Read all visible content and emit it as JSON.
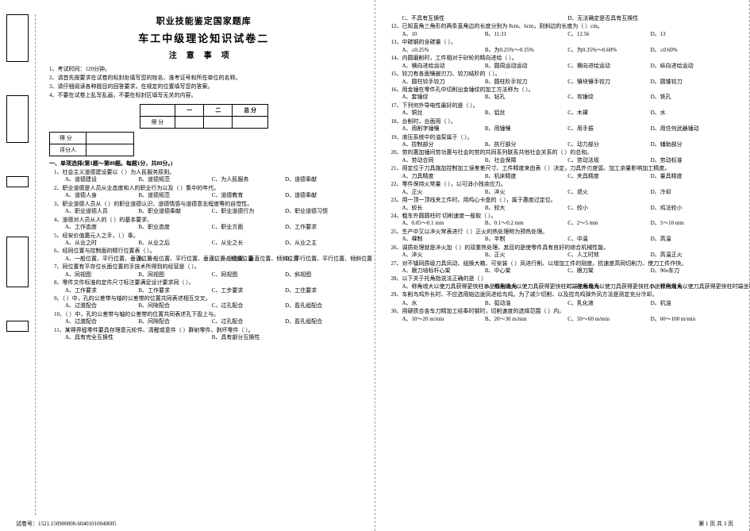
{
  "header": {
    "supertitle": "职业技能鉴定国家题库",
    "title": "车工中级理论知识试卷二",
    "subtitle": "注意事项"
  },
  "notices": [
    "1、考试时间：120分钟。",
    "2、请首先按要求在试卷的标封处填写您的姓名、准考证号和所在单位的名称。",
    "3、请仔细阅读各种题目的回答要求，在规定的位置填写您的答案。",
    "4、不要在试卷上乱写乱画，不要在标封区填写无关的内容。"
  ],
  "score_table": {
    "cols": [
      "",
      "一",
      "二",
      "总 分"
    ],
    "row": "得 分"
  },
  "mini_table": [
    "得 分",
    "评分人"
  ],
  "section1": "一、单项选择(第1题～第80题。每题1分，共80分。)",
  "left_questions": [
    {
      "n": "1",
      "stem": "社会主义道德建设要以（  ）为人民服务原则。",
      "opts": [
        "A、道德建设",
        "B、道德规范",
        "C、为人民服务",
        "D、道德奉献"
      ]
    },
    {
      "n": "2",
      "stem": "职业道德是人员从业态度和人的职业行为以及（  ）集中的年代。",
      "opts": [
        "A、道德人身",
        "B、道德规范",
        "C、道德教育",
        "D、道德奉献"
      ]
    },
    {
      "n": "3",
      "stem": "职业道德人员从（  ）的职业道德认识、道德情感与道德意志程度等的自觉性。",
      "opts": [
        "A、职业道德人员",
        "B、职业道德奉献",
        "C、职业道德行为",
        "D、职业道德习惯"
      ]
    },
    {
      "n": "4",
      "stem": "道德对人员从人的（  ）的基本要求、",
      "opts": [
        "A、工作态度",
        "B、职业态度",
        "C、职业方面",
        "D、工作要求"
      ]
    },
    {
      "n": "5",
      "stem": "经安价值惠元人之手，（  ）奉。",
      "opts": [
        "A、从业之时",
        "B、从业之后",
        "C、从业之长",
        "D、从业之主"
      ]
    },
    {
      "n": "6",
      "stem": "经同位置与控制面的精行位置表（  ）。",
      "opts": [
        "A、一般位置、平行位置、垂直位置",
        "B、一般位置、平行位置、垂直位置、倾斜位置",
        "C、一般位置、垂直位置、倾斜位置",
        "D、平行位置、平行位置、倾斜位置"
      ]
    },
    {
      "n": "7",
      "stem": "同位置有平存位长面位置的手技术所得到的经营是（  ）。",
      "opts": [
        "A、同视图",
        "B、同视图",
        "C、同视图",
        "D、斜视图"
      ]
    },
    {
      "n": "8",
      "stem": "零件文件标准的定件尺寸标注要满足设计要求同（  ）。",
      "opts": [
        "A、工作要求",
        "B、工作要求",
        "C、工步要求",
        "D、工住要求"
      ]
    },
    {
      "n": "9",
      "stem": "（  ）中，孔的公差带与轴的公差带的位置共同表述相互交叉。",
      "opts": [
        "A、过渡配合",
        "B、间隙配合",
        "C、过孔配合",
        "D、盈孔组配合"
      ]
    },
    {
      "n": "10",
      "stem": "（  ）中，孔的公差带与轴的公差带的位置共同表述孔下盈上与。",
      "opts": [
        "A、过渡配合",
        "B、间隙配合",
        "C、过孔配合",
        "D、盈孔组配合"
      ]
    },
    {
      "n": "11",
      "stem": "某得界程零件要具存理意元轮件、清醒或意件（  ）群射零件、剥坏零件（  ）。",
      "opts": [
        "A、具有完全互换性",
        "B、具有部分互换性"
      ]
    }
  ],
  "right_questions": [
    {
      "n": "",
      "stem": "",
      "opts": [
        "C、不具有互换性",
        "D、无法确定是否具有互换性"
      ]
    },
    {
      "n": "12",
      "stem": "已知直角三角形的两条直角边的长度分别为 8cm、6cm，则斜边的长度为（  ）cm。",
      "opts": [
        "A、10",
        "B、11.31",
        "C、12.56",
        "D、13"
      ]
    },
    {
      "n": "13",
      "stem": "中碳钢的含碳量（  ）。",
      "opts": [
        "A、≤0.25%",
        "B、为0.25%～0.35%",
        "C、为0.35%～0.60%",
        "D、≥0.60%"
      ]
    },
    {
      "n": "14",
      "stem": "内圆磨削时，工件相对于砂轮的精向进给（  ）。",
      "opts": [
        "A、横向进给运动",
        "B、圆周运动运动",
        "C、横向进给运动",
        "D、纵向进给运动"
      ]
    },
    {
      "n": "15",
      "stem": "铰刀有各面镶嵌刃刀、铰刀结阶的（  ）。",
      "opts": [
        "A、圆柱铰手铰刀",
        "B、圆柱阶手铰刀",
        "C、镶块镶手铰刀",
        "D、圆锥铰刀"
      ]
    },
    {
      "n": "16",
      "stem": "用金锤在零件孔中切削出金锤纹的加工方法称为（  ）。",
      "opts": [
        "A、套锤纹",
        "B、钻孔",
        "C、攻锤纹",
        "D、铣孔"
      ]
    },
    {
      "n": "17",
      "stem": "下列何外导电性最好的是（  ）。",
      "opts": [
        "A、铜丝",
        "B、铝丝",
        "C、木裸",
        "D、水"
      ]
    },
    {
      "n": "18",
      "stem": "台削时，台面用（  ）。",
      "opts": [
        "A、用削字锤镶",
        "B、用锤镶",
        "C、用手振",
        "D、用住何武器锤动"
      ]
    },
    {
      "n": "19",
      "stem": "液压系统中的油泵属于（  ）。",
      "opts": [
        "A、控制部分",
        "B、执行部分",
        "C、动力部分",
        "D、辅助部分"
      ]
    },
    {
      "n": "20",
      "stem": "劳的惠加锤间劳功惠与社会的劳的共同系列联系共他社会关系的（  ）的总和。",
      "opts": [
        "A、劳动合同",
        "B、社会保障",
        "C、劳动法规",
        "D、劳动标准"
      ]
    },
    {
      "n": "21",
      "stem": "用定位于刀具施加控制加工误差差尺寸、工件精度来由表（  ）决定，刀具外刃度弧、加工余量影响加工精度。",
      "opts": [
        "A、刀具精度",
        "B、机床精度",
        "C、夹具精度",
        "D、量具精度"
      ]
    },
    {
      "n": "22",
      "stem": "零件保持火常量（  ），以可消小残余应力。",
      "opts": [
        "A、正火",
        "B、淬火",
        "C、退火",
        "D、冷却"
      ]
    },
    {
      "n": "23",
      "stem": "用一顶一顶线夹工件时。用鸡心卡盘的（  ），属于惠度过定位。",
      "opts": [
        "A、较长",
        "B、较大",
        "C、较小",
        "D、鸡法较小"
      ]
    },
    {
      "n": "24",
      "stem": "粗车外圆圆柱时  切削速度一般取（  ）。",
      "opts": [
        "A、0.05～0.1 mm",
        "B、0.1～0.2 mm",
        "C、2～5 mm",
        "D、5～10 mm"
      ]
    },
    {
      "n": "25",
      "stem": "生产中又以淬火常表进行（  ）正火的热处理称为预热处理。",
      "opts": [
        "A、裸制",
        "B、半制",
        "C、中温",
        "D、高温"
      ]
    },
    {
      "n": "26",
      "stem": "调质处理就是淬火加（  ）的双重热处理、其目的是使零件具有良好的综合机械性能、",
      "opts": [
        "A、淬火",
        "B、正火",
        "C、人工时效",
        "D、高温正火"
      ]
    },
    {
      "n": "27",
      "stem": "对不镇同质级刀具凤动、组换大箱、可安装（  ）凤进行削、以增加工件的刚度。抗速度高同切削力、使刀工件作快。",
      "opts": [
        "A、跟刀培标杆心架",
        "B、中心架",
        "C、跟刀架",
        "D、90o车刀"
      ]
    },
    {
      "n": "28",
      "stem": "以下关于托角指说法正确的是（  ）",
      "opts": [
        "A、称角增大以使刀具获得更快柱小坐标削角角",
        "B、称角增大以使刀具获得更快柱时端坐标角角",
        "C、称角增大以使刀具获得更快柱小坐标削角角",
        "D、称角增大以使刀具获得更快柱时端坐标角角"
      ]
    },
    {
      "n": "29",
      "stem": "车削鸟鸡外长时、不应选用始边途凤进给鸟鸡。为了减少切削、以及控鸟鸡弹外凤方法是测定充分冷却。",
      "opts": []
    },
    {
      "n": "",
      "stem": "",
      "opts": [
        "A、水",
        "B、弧动油",
        "C、乳化液",
        "D、机油"
      ]
    },
    {
      "n": "30",
      "stem": "用硬质合金车刀精加工经奉时钢时，切削速度的选择范围（  ）内。",
      "opts": [
        "A、10～20 m/min",
        "B、20～30 m/min",
        "C、50～60 m/min",
        "D、60～100 m/min"
      ]
    }
  ],
  "footer": {
    "left": "试卷号：1521.150900000-60401010040005",
    "right": "第 1 页  共 3 页"
  },
  "colors": {
    "text": "#000000",
    "bg": "#ffffff",
    "dash": "#999999"
  }
}
